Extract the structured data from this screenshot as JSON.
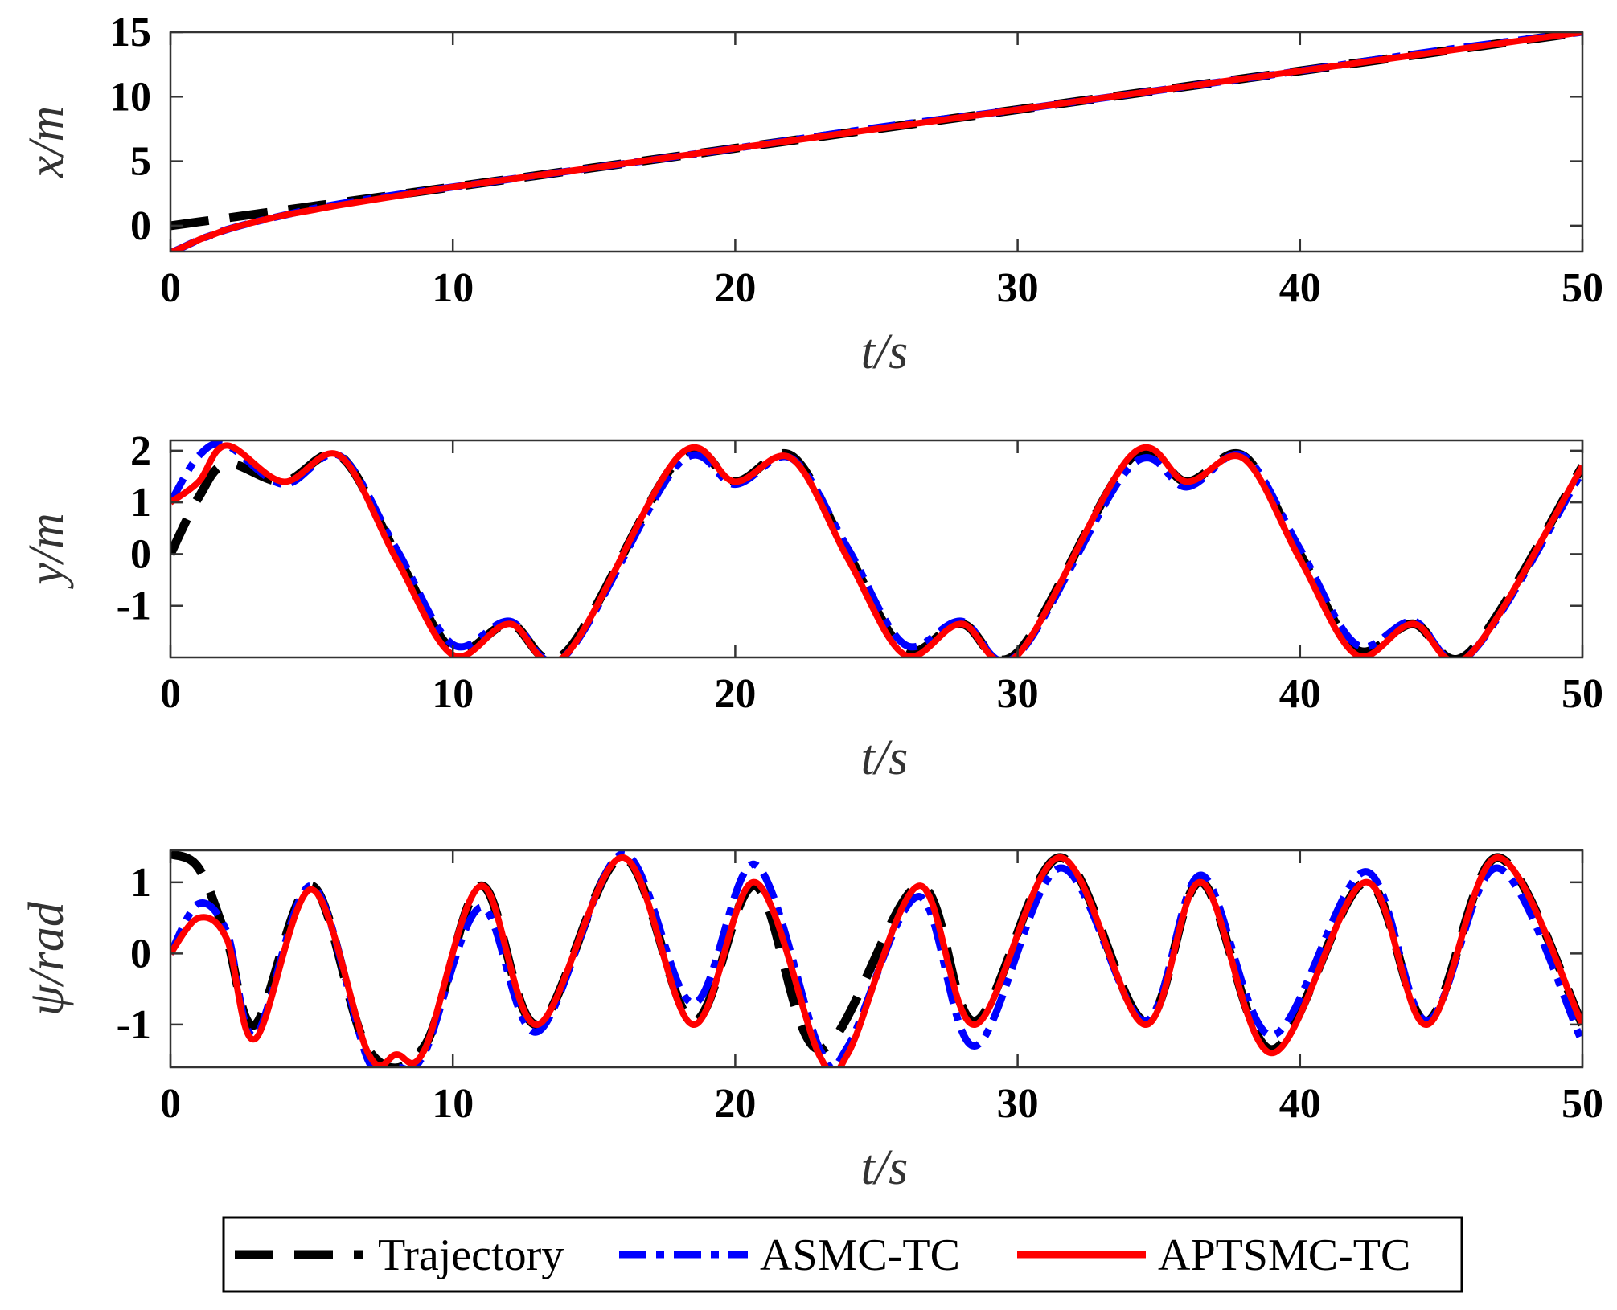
{
  "chart_data": [
    {
      "type": "line",
      "xlabel": "t/s",
      "ylabel": "x/m",
      "xlim": [
        0,
        50
      ],
      "ylim": [
        -2,
        15
      ],
      "xticks": [
        0,
        10,
        20,
        30,
        40,
        50
      ],
      "yticks": [
        0,
        5,
        10,
        15
      ],
      "xtick_labels": [
        "0",
        "10",
        "20",
        "30",
        "40",
        "50"
      ],
      "ytick_labels": [
        "0",
        "5",
        "10",
        "15"
      ],
      "grid": false,
      "series": [
        {
          "name": "Trajectory",
          "color": "#000000",
          "style": "dashed",
          "x": [
            0,
            1,
            2,
            3,
            4,
            5,
            6,
            8,
            10,
            15,
            20,
            25,
            30,
            35,
            40,
            45,
            50
          ],
          "y": [
            0,
            0.3,
            0.6,
            0.9,
            1.2,
            1.5,
            1.8,
            2.4,
            3.0,
            4.5,
            6.0,
            7.5,
            9.0,
            10.5,
            12.0,
            13.5,
            15.0
          ]
        },
        {
          "name": "ASMC-TC",
          "color": "#0000ff",
          "style": "dash-dot",
          "x": [
            0,
            0.5,
            1,
            1.5,
            2,
            3,
            4,
            5,
            6,
            8,
            10,
            15,
            20,
            25,
            30,
            35,
            40,
            45,
            50
          ],
          "y": [
            -2.1,
            -1.6,
            -1.1,
            -0.7,
            -0.3,
            0.3,
            0.8,
            1.3,
            1.7,
            2.4,
            3.0,
            4.5,
            6.0,
            7.6,
            9.0,
            10.5,
            12.0,
            13.6,
            15.0
          ]
        },
        {
          "name": "APTSMC-TC",
          "color": "#ff0000",
          "style": "solid",
          "x": [
            0,
            0.5,
            1,
            1.5,
            2,
            3,
            4,
            5,
            6,
            8,
            10,
            15,
            20,
            25,
            30,
            35,
            40,
            45,
            50
          ],
          "y": [
            -2.1,
            -1.6,
            -1.1,
            -0.7,
            -0.3,
            0.3,
            0.8,
            1.2,
            1.6,
            2.3,
            3.0,
            4.5,
            6.0,
            7.5,
            9.0,
            10.5,
            12.0,
            13.5,
            15.0
          ]
        }
      ]
    },
    {
      "type": "line",
      "xlabel": "t/s",
      "ylabel": "y/m",
      "xlim": [
        0,
        50
      ],
      "ylim": [
        -2,
        2.2
      ],
      "xticks": [
        0,
        10,
        20,
        30,
        40,
        50
      ],
      "yticks": [
        -1,
        0,
        1,
        2
      ],
      "xtick_labels": [
        "0",
        "10",
        "20",
        "30",
        "40",
        "50"
      ],
      "ytick_labels": [
        "-1",
        "0",
        "1",
        "2"
      ],
      "grid": false,
      "series": [
        {
          "name": "Trajectory",
          "color": "#000000",
          "style": "dashed",
          "x": [
            0,
            1,
            2,
            4,
            6,
            8,
            10,
            12,
            14,
            18,
            20,
            22,
            24,
            26,
            28,
            30,
            34,
            36,
            38,
            40,
            42,
            44,
            46,
            50
          ],
          "y": [
            0,
            1.1,
            1.75,
            1.4,
            1.9,
            0.0,
            -1.85,
            -1.35,
            -1.9,
            1.85,
            1.4,
            1.9,
            0.0,
            -1.85,
            -1.35,
            -1.9,
            1.85,
            1.4,
            1.9,
            0.0,
            -1.85,
            -1.35,
            -1.9,
            1.7
          ]
        },
        {
          "name": "ASMC-TC",
          "color": "#0000ff",
          "style": "dash-dot",
          "x": [
            0,
            1,
            2,
            4,
            6,
            8,
            10,
            12,
            14,
            18,
            20,
            22,
            24,
            26,
            28,
            30,
            34,
            36,
            38,
            40,
            42,
            44,
            46,
            50
          ],
          "y": [
            1.0,
            1.9,
            2.1,
            1.35,
            1.9,
            0.1,
            -1.75,
            -1.3,
            -1.95,
            1.75,
            1.35,
            1.85,
            0.1,
            -1.75,
            -1.3,
            -1.95,
            1.7,
            1.3,
            1.9,
            0.1,
            -1.75,
            -1.3,
            -1.95,
            1.6
          ]
        },
        {
          "name": "APTSMC-TC",
          "color": "#ff0000",
          "style": "solid",
          "x": [
            0,
            1,
            2,
            4,
            6,
            8,
            10,
            12,
            14,
            18,
            20,
            22,
            24,
            26,
            28,
            30,
            34,
            36,
            38,
            40,
            42,
            44,
            46,
            50
          ],
          "y": [
            1.0,
            1.4,
            2.1,
            1.4,
            1.9,
            -0.1,
            -1.95,
            -1.35,
            -1.95,
            1.9,
            1.4,
            1.85,
            -0.1,
            -1.95,
            -1.35,
            -1.95,
            1.9,
            1.4,
            1.85,
            -0.1,
            -1.95,
            -1.35,
            -1.95,
            1.7
          ]
        }
      ]
    },
    {
      "type": "line",
      "xlabel": "t/s",
      "ylabel": "ψ/rad",
      "xlim": [
        0,
        50
      ],
      "ylim": [
        -1.6,
        1.45
      ],
      "xticks": [
        0,
        10,
        20,
        30,
        40,
        50
      ],
      "yticks": [
        -1,
        0,
        1
      ],
      "xtick_labels": [
        "0",
        "10",
        "20",
        "30",
        "40",
        "50"
      ],
      "ytick_labels": [
        "-1",
        "0",
        "1"
      ],
      "grid": false,
      "series": [
        {
          "name": "Trajectory",
          "color": "#000000",
          "style": "dashed",
          "x": [
            0,
            1,
            2,
            3,
            5,
            7,
            9,
            11,
            13,
            16,
            18.5,
            20.7,
            23,
            26.5,
            28.5,
            31.5,
            34.5,
            36.5,
            39,
            42.3,
            44.5,
            47,
            50
          ],
          "y": [
            1.4,
            1.2,
            0.2,
            -1.0,
            0.95,
            -1.35,
            -1.3,
            0.95,
            -1.0,
            1.35,
            -0.95,
            0.95,
            -1.35,
            0.95,
            -0.95,
            1.35,
            -0.95,
            1.0,
            -1.35,
            1.0,
            -0.95,
            1.35,
            -1.0
          ]
        },
        {
          "name": "ASMC-TC",
          "color": "#0000ff",
          "style": "dash-dot",
          "x": [
            0,
            1,
            2,
            3,
            5,
            7,
            8,
            9,
            11,
            13,
            16,
            18.5,
            20.7,
            23,
            24,
            26.5,
            28.5,
            31.5,
            34.5,
            36.5,
            39,
            42.3,
            44.5,
            47,
            50
          ],
          "y": [
            0,
            0.7,
            0.3,
            -1.15,
            0.95,
            -1.5,
            -1.6,
            -1.4,
            0.65,
            -1.1,
            1.4,
            -0.7,
            1.25,
            -1.35,
            -1.3,
            0.8,
            -1.3,
            1.2,
            -0.95,
            1.1,
            -1.15,
            1.15,
            -0.95,
            1.2,
            -1.25
          ]
        },
        {
          "name": "APTSMC-TC",
          "color": "#ff0000",
          "style": "solid",
          "x": [
            0,
            1,
            2,
            3,
            5,
            7,
            8,
            9,
            11,
            13,
            16,
            18.5,
            20.7,
            23,
            24,
            26.5,
            28.5,
            31.5,
            34.5,
            36.5,
            39,
            42.3,
            44.5,
            47,
            50
          ],
          "y": [
            0,
            0.5,
            0.2,
            -1.2,
            0.9,
            -1.4,
            -1.42,
            -1.35,
            0.95,
            -1.0,
            1.35,
            -1.0,
            1.0,
            -1.45,
            -1.4,
            0.95,
            -1.0,
            1.35,
            -1.0,
            1.0,
            -1.4,
            1.0,
            -1.0,
            1.35,
            -1.0
          ]
        }
      ]
    }
  ],
  "legend": {
    "position": "bottom-center",
    "entries": [
      {
        "label": "Trajectory",
        "color": "#000000",
        "style": "dashed"
      },
      {
        "label": "ASMC-TC",
        "color": "#0000ff",
        "style": "dash-dot"
      },
      {
        "label": "APTSMC-TC",
        "color": "#ff0000",
        "style": "solid"
      }
    ]
  }
}
